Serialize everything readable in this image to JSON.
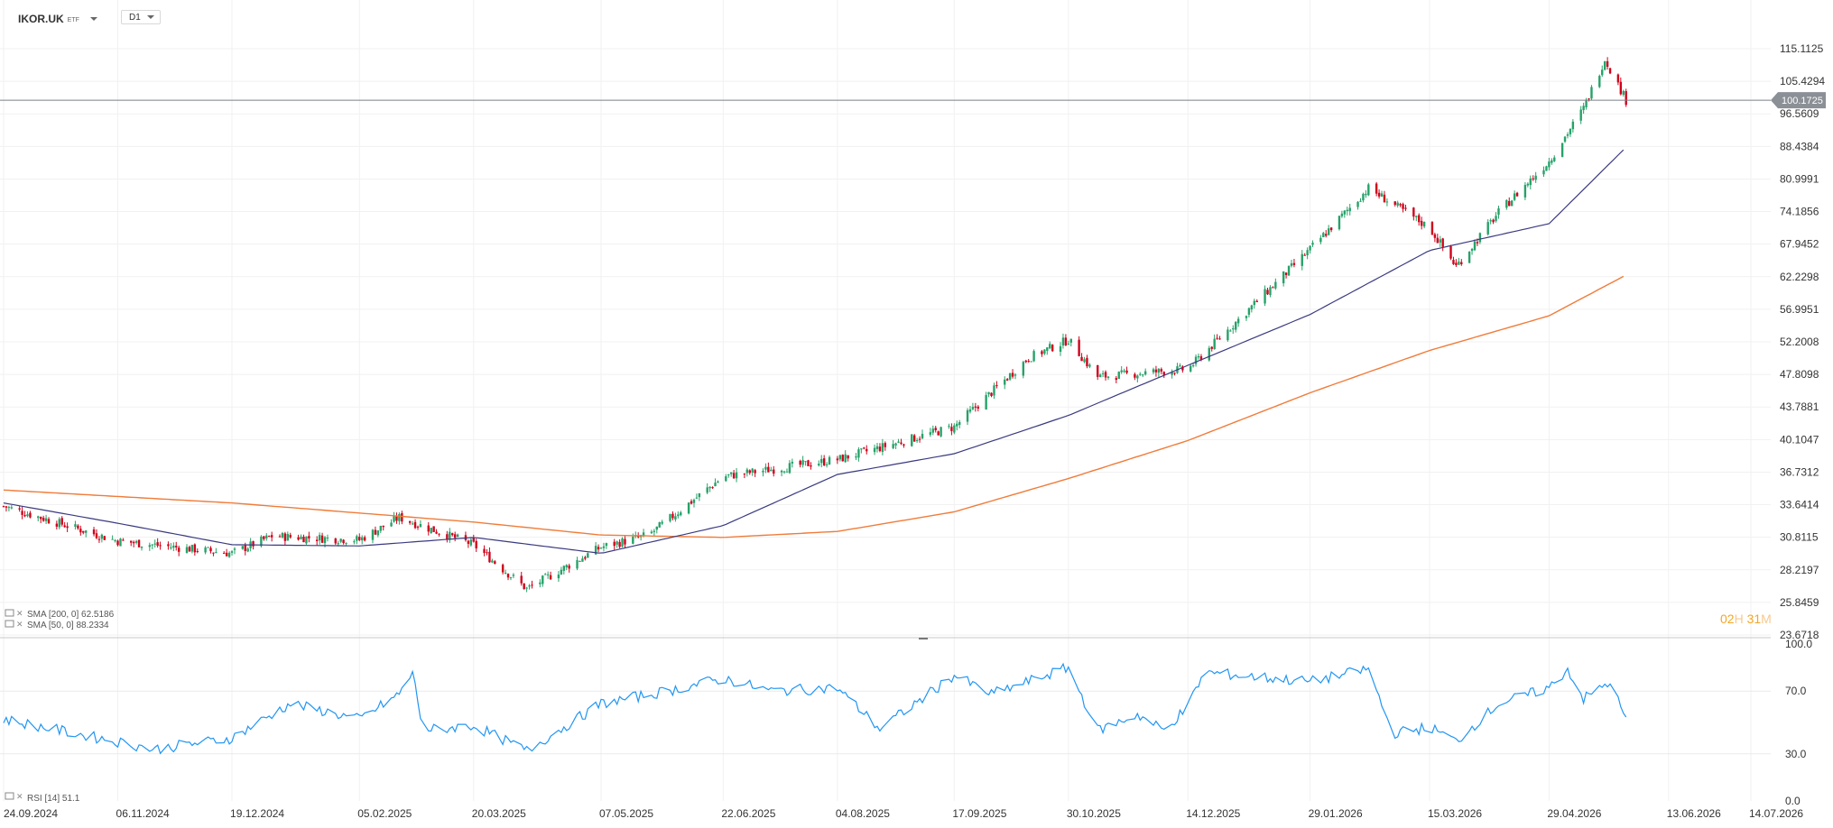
{
  "header": {
    "symbol": "IKOR.UK",
    "type": "ETF",
    "timeframe": "D1"
  },
  "timer": {
    "hours": "02",
    "hours_unit": "H",
    "minutes": "31",
    "minutes_unit": "M"
  },
  "price_scale": [
    "115.1125",
    "105.4294",
    "96.5609",
    "88.4384",
    "80.9991",
    "74.1856",
    "67.9452",
    "62.2298",
    "56.9951",
    "52.2008",
    "47.8098",
    "43.7881",
    "40.1047",
    "36.7312",
    "33.6414",
    "30.8115",
    "28.2197",
    "25.8459",
    "23.6718"
  ],
  "current_price": "100.1725",
  "indicators": {
    "sma200": "SMA [200, 0] 62.5186",
    "sma50": "SMA [50, 0] 88.2334",
    "rsi": "RSI [14] 51.1"
  },
  "rsi_scale": [
    "100.0",
    "70.0",
    "30.0",
    "0.0"
  ],
  "date_labels": [
    "24.09.2024",
    "06.11.2024",
    "19.12.2024",
    "05.02.2025",
    "20.03.2025",
    "07.05.2025",
    "22.06.2025",
    "04.08.2025",
    "17.09.2025",
    "30.10.2025",
    "14.12.2025",
    "29.01.2026",
    "15.03.2026",
    "29.04.2026",
    "13.06.2026",
    "14.07.2026"
  ],
  "colors": {
    "up": "#26a269",
    "down": "#d0021b",
    "sma50": "#3a3a80",
    "sma200": "#f07c3a",
    "rsi": "#2196f3",
    "price_tag": "#8b8f96",
    "timer": "#f5a623"
  },
  "chart_data": {
    "type": "candlestick",
    "scale": "log",
    "ylim": [
      23.6718,
      115.1125
    ],
    "x_range": [
      "2024-09-24",
      "2026-07-14"
    ],
    "current_price": 100.1725,
    "price_series_key_points": [
      [
        "2024-09-24",
        33.5
      ],
      [
        "2024-11-06",
        30.5
      ],
      [
        "2024-12-19",
        29.5
      ],
      [
        "2025-01-03",
        30.9
      ],
      [
        "2025-02-05",
        30.6
      ],
      [
        "2025-02-20",
        32.5
      ],
      [
        "2025-03-20",
        30.2
      ],
      [
        "2025-04-09",
        26.8
      ],
      [
        "2025-05-07",
        30.0
      ],
      [
        "2025-05-25",
        31.0
      ],
      [
        "2025-06-22",
        36.3
      ],
      [
        "2025-08-04",
        38.0
      ],
      [
        "2025-09-17",
        41.5
      ],
      [
        "2025-10-15",
        50.0
      ],
      [
        "2025-10-30",
        52.5
      ],
      [
        "2025-11-10",
        47.5
      ],
      [
        "2025-12-14",
        48.5
      ],
      [
        "2026-01-29",
        67.0
      ],
      [
        "2026-02-20",
        79.0
      ],
      [
        "2026-03-15",
        71.0
      ],
      [
        "2026-03-25",
        64.0
      ],
      [
        "2026-04-10",
        74.0
      ],
      [
        "2026-04-29",
        85.0
      ],
      [
        "2026-05-12",
        98.0
      ],
      [
        "2026-05-20",
        112.0
      ],
      [
        "2026-05-28",
        100.17
      ]
    ],
    "sma50_key_points": [
      [
        "2024-09-24",
        33.8
      ],
      [
        "2024-11-06",
        32.0
      ],
      [
        "2024-12-19",
        30.2
      ],
      [
        "2025-02-05",
        30.1
      ],
      [
        "2025-03-20",
        30.8
      ],
      [
        "2025-05-07",
        29.5
      ],
      [
        "2025-06-22",
        31.8
      ],
      [
        "2025-08-04",
        36.5
      ],
      [
        "2025-09-17",
        38.6
      ],
      [
        "2025-10-30",
        42.8
      ],
      [
        "2025-12-14",
        49.0
      ],
      [
        "2026-01-29",
        56.2
      ],
      [
        "2026-03-15",
        66.8
      ],
      [
        "2026-04-29",
        71.8
      ],
      [
        "2026-05-28",
        88.2334
      ]
    ],
    "sma200_key_points": [
      [
        "2024-09-24",
        35.0
      ],
      [
        "2024-12-19",
        33.8
      ],
      [
        "2025-03-20",
        32.1
      ],
      [
        "2025-05-07",
        31.0
      ],
      [
        "2025-06-22",
        30.8
      ],
      [
        "2025-08-04",
        31.3
      ],
      [
        "2025-09-17",
        33.0
      ],
      [
        "2025-10-30",
        36.1
      ],
      [
        "2025-12-14",
        40.0
      ],
      [
        "2026-01-29",
        45.5
      ],
      [
        "2026-03-15",
        51.0
      ],
      [
        "2026-04-29",
        56.0
      ],
      [
        "2026-05-28",
        62.5186
      ]
    ],
    "rsi": {
      "ylim": [
        0,
        100
      ],
      "levels": [
        30,
        70
      ],
      "key_points": [
        [
          "2024-09-24",
          52
        ],
        [
          "2024-10-15",
          45
        ],
        [
          "2024-11-20",
          33
        ],
        [
          "2024-12-19",
          40
        ],
        [
          "2025-01-10",
          62
        ],
        [
          "2025-02-05",
          52
        ],
        [
          "2025-02-20",
          68
        ],
        [
          "2025-02-25",
          82
        ],
        [
          "2025-03-01",
          45
        ],
        [
          "2025-03-20",
          48
        ],
        [
          "2025-04-09",
          32
        ],
        [
          "2025-05-07",
          62
        ],
        [
          "2025-06-01",
          70
        ],
        [
          "2025-06-22",
          78
        ],
        [
          "2025-07-10",
          70
        ],
        [
          "2025-08-04",
          72
        ],
        [
          "2025-08-20",
          46
        ],
        [
          "2025-09-17",
          80
        ],
        [
          "2025-10-01",
          68
        ],
        [
          "2025-10-30",
          85
        ],
        [
          "2025-11-10",
          45
        ],
        [
          "2025-11-25",
          55
        ],
        [
          "2025-12-05",
          45
        ],
        [
          "2025-12-14",
          60
        ],
        [
          "2025-12-20",
          82
        ],
        [
          "2026-01-29",
          76
        ],
        [
          "2026-02-20",
          84
        ],
        [
          "2026-03-01",
          43
        ],
        [
          "2026-03-15",
          47
        ],
        [
          "2026-03-25",
          38
        ],
        [
          "2026-04-10",
          62
        ],
        [
          "2026-04-29",
          72
        ],
        [
          "2026-05-06",
          84
        ],
        [
          "2026-05-12",
          65
        ],
        [
          "2026-05-22",
          76
        ],
        [
          "2026-05-28",
          51.1
        ]
      ]
    }
  }
}
